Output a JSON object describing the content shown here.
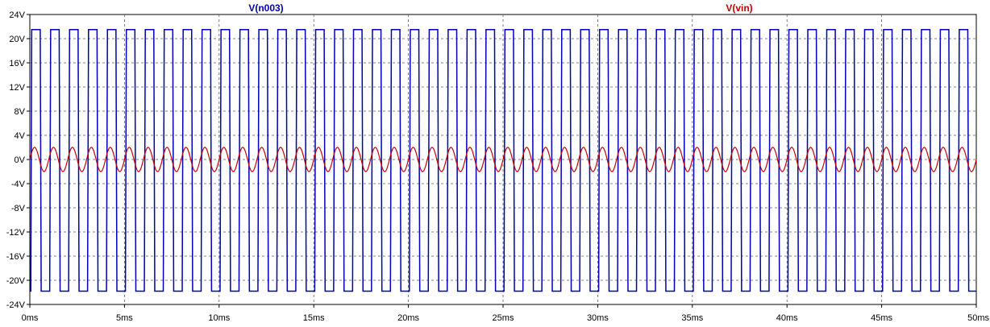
{
  "chart_data": {
    "type": "line",
    "xlim": [
      0,
      50
    ],
    "ylim": [
      -24,
      24
    ],
    "x_ticks": [
      "0ms",
      "5ms",
      "10ms",
      "15ms",
      "20ms",
      "25ms",
      "30ms",
      "35ms",
      "40ms",
      "45ms",
      "50ms"
    ],
    "y_ticks": [
      "24V",
      "20V",
      "16V",
      "12V",
      "8V",
      "4V",
      "0V",
      "-4V",
      "-8V",
      "-12V",
      "-16V",
      "-20V",
      "-24V"
    ],
    "grid": true,
    "legend_placement": "top",
    "series": [
      {
        "name": "V(n003)",
        "color": "#0000b4",
        "waveform": "square",
        "period_ms": 1.0,
        "high": 21.5,
        "low": -21.8,
        "phase_ms": 0.05
      },
      {
        "name": "V(vin)",
        "color": "#c80000",
        "waveform": "sine",
        "period_ms": 1.0,
        "amplitude": 2.0,
        "offset": 0
      }
    ]
  }
}
